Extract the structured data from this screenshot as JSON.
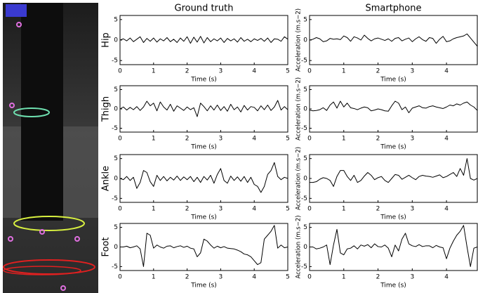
{
  "chart_data": [
    {
      "type": "line",
      "title": "Ground truth",
      "ylabel": "Hip",
      "xlabel": "Time (s)",
      "color": "#000000",
      "x": [
        0,
        0.1,
        0.2,
        0.3,
        0.4,
        0.5,
        0.6,
        0.7,
        0.8,
        0.9,
        1,
        1.1,
        1.2,
        1.3,
        1.4,
        1.5,
        1.6,
        1.7,
        1.8,
        1.9,
        2,
        2.1,
        2.2,
        2.3,
        2.4,
        2.5,
        2.6,
        2.7,
        2.8,
        2.9,
        3,
        3.1,
        3.2,
        3.3,
        3.4,
        3.5,
        3.6,
        3.7,
        3.8,
        3.9,
        4,
        4.1,
        4.2,
        4.3,
        4.4,
        4.5,
        4.6,
        4.7,
        4.8,
        4.9,
        5
      ],
      "values": [
        0,
        0.3,
        -0.2,
        0.5,
        -0.4,
        0.2,
        0.8,
        -0.6,
        0.4,
        -0.3,
        0.5,
        -0.5,
        0.3,
        -0.2,
        0.6,
        -0.4,
        0.2,
        -0.6,
        0.5,
        -0.3,
        0.8,
        -0.8,
        0.7,
        -0.5,
        0.9,
        -0.7,
        0.6,
        -0.4,
        0.3,
        -0.2,
        0.5,
        -0.6,
        0.4,
        -0.2,
        0.3,
        -0.5,
        0.6,
        -0.3,
        0.2,
        -0.4,
        0.3,
        -0.1,
        0.4,
        -0.3,
        0.5,
        -0.6,
        0.3,
        0.2,
        -0.3,
        0.8,
        0.2
      ],
      "xlim": [
        0,
        5
      ],
      "xticks": [
        0,
        1,
        2,
        3,
        4,
        5
      ],
      "ylim": [
        -6,
        6
      ],
      "yticks": [
        -5,
        0,
        5
      ]
    },
    {
      "type": "line",
      "title": "Smartphone",
      "ylabel": "Acceleration (m.s−2)",
      "xlabel": "Time (s)",
      "color": "#000000",
      "x": [
        0,
        0.1,
        0.2,
        0.3,
        0.4,
        0.5,
        0.6,
        0.7,
        0.8,
        0.9,
        1,
        1.1,
        1.2,
        1.3,
        1.4,
        1.5,
        1.6,
        1.7,
        1.8,
        1.9,
        2,
        2.1,
        2.2,
        2.3,
        2.4,
        2.5,
        2.6,
        2.7,
        2.8,
        2.9,
        3,
        3.1,
        3.2,
        3.3,
        3.4,
        3.5,
        3.6,
        3.7,
        3.8,
        3.9,
        4,
        4.1,
        4.2,
        4.3,
        4.4,
        4.5,
        4.6,
        4.7,
        4.8,
        4.9
      ],
      "values": [
        0,
        0.2,
        0.6,
        0.3,
        -0.4,
        -0.2,
        0.4,
        0.2,
        0.3,
        0.1,
        1.0,
        0.6,
        -0.3,
        0.8,
        0.5,
        0,
        1.2,
        0.4,
        -0.2,
        0.3,
        0.5,
        0.2,
        -0.1,
        0.3,
        -0.3,
        0.4,
        0.6,
        -0.2,
        0.2,
        0.5,
        -0.4,
        0.3,
        0.8,
        0.1,
        -0.3,
        0.6,
        0.4,
        -0.8,
        0.2,
        0.9,
        -0.4,
        -0.2,
        0.3,
        0.6,
        0.8,
        1.0,
        1.5,
        0.5,
        -0.5,
        -1.5
      ],
      "xlim": [
        0,
        4.9
      ],
      "xticks": [
        0,
        1,
        2,
        3,
        4
      ],
      "ylim": [
        -6,
        6
      ],
      "yticks": [
        -5,
        0,
        5
      ]
    },
    {
      "type": "line",
      "ylabel": "Thigh",
      "xlabel": "Time (s)",
      "color": "#000000",
      "x": [
        0,
        0.1,
        0.2,
        0.3,
        0.4,
        0.5,
        0.6,
        0.7,
        0.8,
        0.9,
        1,
        1.1,
        1.2,
        1.3,
        1.4,
        1.5,
        1.6,
        1.7,
        1.8,
        1.9,
        2,
        2.1,
        2.2,
        2.3,
        2.4,
        2.5,
        2.6,
        2.7,
        2.8,
        2.9,
        3,
        3.1,
        3.2,
        3.3,
        3.4,
        3.5,
        3.6,
        3.7,
        3.8,
        3.9,
        4,
        4.1,
        4.2,
        4.3,
        4.4,
        4.5,
        4.6,
        4.7,
        4.8,
        4.9,
        5
      ],
      "values": [
        0,
        0.5,
        -0.3,
        0.4,
        -0.2,
        0.6,
        -0.4,
        0.5,
        2.0,
        0.8,
        1.5,
        -0.5,
        1.8,
        0.5,
        -0.3,
        1.2,
        -0.6,
        0.8,
        0.2,
        -0.4,
        0.5,
        -0.2,
        0.3,
        -2.0,
        1.5,
        0.6,
        -0.5,
        0.8,
        -0.3,
        1.0,
        -0.4,
        0.6,
        -0.6,
        1.2,
        -0.2,
        0.5,
        -0.8,
        0.9,
        -0.3,
        0.6,
        0.4,
        -0.5,
        0.8,
        -0.2,
        1.0,
        -0.4,
        0.5,
        2.2,
        -0.3,
        0.6,
        -0.2
      ],
      "xlim": [
        0,
        5
      ],
      "xticks": [
        0,
        1,
        2,
        3,
        4,
        5
      ],
      "ylim": [
        -6,
        6
      ],
      "yticks": [
        -5,
        0,
        5
      ]
    },
    {
      "type": "line",
      "ylabel": "Acceleration (m.s−2)",
      "xlabel": "Time (s)",
      "color": "#000000",
      "x": [
        0,
        0.1,
        0.2,
        0.3,
        0.4,
        0.5,
        0.6,
        0.7,
        0.8,
        0.9,
        1,
        1.1,
        1.2,
        1.3,
        1.4,
        1.5,
        1.6,
        1.7,
        1.8,
        1.9,
        2,
        2.1,
        2.2,
        2.3,
        2.4,
        2.5,
        2.6,
        2.7,
        2.8,
        2.9,
        3,
        3.1,
        3.2,
        3.3,
        3.4,
        3.5,
        3.6,
        3.7,
        3.8,
        3.9,
        4,
        4.1,
        4.2,
        4.3,
        4.4,
        4.5,
        4.6,
        4.7,
        4.8,
        4.9
      ],
      "values": [
        -0.3,
        -0.5,
        -0.4,
        -0.2,
        0.3,
        -0.4,
        1.0,
        1.8,
        0.2,
        2.0,
        0.5,
        1.5,
        0.3,
        0.1,
        -0.2,
        0.2,
        0.5,
        0.3,
        -0.5,
        -0.3,
        0,
        -0.2,
        -0.5,
        -0.6,
        0.8,
        2.0,
        1.5,
        -0.2,
        0.5,
        -1.0,
        0.2,
        0.5,
        0.8,
        0.3,
        0.2,
        0.6,
        0.8,
        0.5,
        0.3,
        0.1,
        0.5,
        1.0,
        0.8,
        1.3,
        1.0,
        1.5,
        1.8,
        1.0,
        0.5,
        -0.4
      ],
      "xlim": [
        0,
        4.9
      ],
      "xticks": [
        0,
        1,
        2,
        3,
        4
      ],
      "ylim": [
        -6,
        6
      ],
      "yticks": [
        -5,
        0,
        5
      ]
    },
    {
      "type": "line",
      "ylabel": "Ankle",
      "xlabel": "Time (s)",
      "color": "#000000",
      "x": [
        0,
        0.1,
        0.2,
        0.3,
        0.4,
        0.5,
        0.6,
        0.7,
        0.8,
        0.9,
        1,
        1.1,
        1.2,
        1.3,
        1.4,
        1.5,
        1.6,
        1.7,
        1.8,
        1.9,
        2,
        2.1,
        2.2,
        2.3,
        2.4,
        2.5,
        2.6,
        2.7,
        2.8,
        2.9,
        3,
        3.1,
        3.2,
        3.3,
        3.4,
        3.5,
        3.6,
        3.7,
        3.8,
        3.9,
        4,
        4.1,
        4.2,
        4.3,
        4.4,
        4.5,
        4.6,
        4.7,
        4.8,
        4.9,
        5
      ],
      "values": [
        0,
        -0.3,
        0.5,
        -0.5,
        0.3,
        -2.5,
        -1.0,
        2.0,
        1.5,
        -0.8,
        -2.0,
        0.8,
        -0.5,
        0.5,
        -0.6,
        0.3,
        -0.4,
        0.6,
        -0.5,
        0.4,
        -0.3,
        0.5,
        -0.8,
        0.3,
        -1.0,
        0.5,
        -0.4,
        0.8,
        -1.2,
        1.0,
        2.5,
        -0.5,
        -1.2,
        0.6,
        -0.5,
        0.4,
        -0.7,
        0.5,
        -1.0,
        0.3,
        -1.5,
        -2.0,
        -3.5,
        -2.0,
        1.0,
        2.0,
        4.0,
        0.5,
        -0.3,
        0.3,
        0
      ],
      "xlim": [
        0,
        5
      ],
      "xticks": [
        0,
        1,
        2,
        3,
        4,
        5
      ],
      "ylim": [
        -6,
        6
      ],
      "yticks": [
        -5,
        0,
        5
      ]
    },
    {
      "type": "line",
      "ylabel": "Acceleration (m.s−2)",
      "xlabel": "Time (s)",
      "color": "#000000",
      "x": [
        0,
        0.1,
        0.2,
        0.3,
        0.4,
        0.5,
        0.6,
        0.7,
        0.8,
        0.9,
        1,
        1.1,
        1.2,
        1.3,
        1.4,
        1.5,
        1.6,
        1.7,
        1.8,
        1.9,
        2,
        2.1,
        2.2,
        2.3,
        2.4,
        2.5,
        2.6,
        2.7,
        2.8,
        2.9,
        3,
        3.1,
        3.2,
        3.3,
        3.4,
        3.5,
        3.6,
        3.7,
        3.8,
        3.9,
        4,
        4.1,
        4.2,
        4.3,
        4.4,
        4.5,
        4.6,
        4.7,
        4.8,
        4.9
      ],
      "values": [
        -1.0,
        -1.0,
        -0.8,
        -0.2,
        0.2,
        0,
        -0.5,
        -2.0,
        0.5,
        2.0,
        2.0,
        0.5,
        -0.5,
        0.8,
        -1.0,
        -0.5,
        0.6,
        1.5,
        0.8,
        -0.3,
        0.2,
        0.5,
        -0.5,
        -1.0,
        0,
        1.0,
        0.8,
        -0.2,
        0.3,
        0.8,
        0.2,
        -0.3,
        0.5,
        0.8,
        0.6,
        0.5,
        0.3,
        0.6,
        0.9,
        0.2,
        0.5,
        1.0,
        1.5,
        0.5,
        2.5,
        0.8,
        5.0,
        0,
        -0.4,
        0
      ],
      "xlim": [
        0,
        4.9
      ],
      "xticks": [
        0,
        1,
        2,
        3,
        4
      ],
      "ylim": [
        -6,
        6
      ],
      "yticks": [
        -5,
        0,
        5
      ]
    },
    {
      "type": "line",
      "ylabel": "Foot",
      "xlabel": "Time (s)",
      "color": "#000000",
      "x": [
        0,
        0.1,
        0.2,
        0.3,
        0.4,
        0.5,
        0.6,
        0.7,
        0.8,
        0.9,
        1,
        1.1,
        1.2,
        1.3,
        1.4,
        1.5,
        1.6,
        1.7,
        1.8,
        1.9,
        2,
        2.1,
        2.2,
        2.3,
        2.4,
        2.5,
        2.6,
        2.7,
        2.8,
        2.9,
        3,
        3.1,
        3.2,
        3.3,
        3.4,
        3.5,
        3.6,
        3.7,
        3.8,
        3.9,
        4,
        4.1,
        4.2,
        4.3,
        4.4,
        4.5,
        4.6,
        4.7,
        4.8,
        4.9,
        5
      ],
      "values": [
        0,
        0,
        0.2,
        -0.2,
        0,
        0.3,
        -0.5,
        -5.0,
        3.5,
        3.0,
        -0.3,
        0.5,
        0,
        -0.3,
        0.2,
        0.3,
        -0.2,
        0.1,
        0.3,
        -0.1,
        0.2,
        -0.3,
        -0.5,
        -2.5,
        -1.5,
        2.0,
        1.5,
        0.5,
        -0.3,
        0.2,
        -0.2,
        0.1,
        -0.3,
        -0.4,
        -0.5,
        -0.8,
        -1.2,
        -1.8,
        -2.0,
        -2.5,
        -3.5,
        -4.5,
        -4.0,
        2.0,
        3.0,
        4.0,
        5.5,
        -0.3,
        0.5,
        -0.2,
        0
      ],
      "xlim": [
        0,
        5
      ],
      "xticks": [
        0,
        1,
        2,
        3,
        4,
        5
      ],
      "ylim": [
        -6,
        6
      ],
      "yticks": [
        -5,
        0,
        5
      ]
    },
    {
      "type": "line",
      "ylabel": "Acceleration (m.s−2)",
      "xlabel": "Time (s)",
      "color": "#000000",
      "x": [
        0,
        0.1,
        0.2,
        0.3,
        0.4,
        0.5,
        0.6,
        0.7,
        0.8,
        0.9,
        1,
        1.1,
        1.2,
        1.3,
        1.4,
        1.5,
        1.6,
        1.7,
        1.8,
        1.9,
        2,
        2.1,
        2.2,
        2.3,
        2.4,
        2.5,
        2.6,
        2.7,
        2.8,
        2.9,
        3,
        3.1,
        3.2,
        3.3,
        3.4,
        3.5,
        3.6,
        3.7,
        3.8,
        3.9,
        4,
        4.1,
        4.2,
        4.3,
        4.4,
        4.5,
        4.6,
        4.7,
        4.8,
        4.9
      ],
      "values": [
        0,
        0,
        -0.5,
        -0.3,
        0,
        0.5,
        -4.5,
        0.5,
        4.5,
        -1.5,
        -2.0,
        -0.5,
        -0.3,
        0.3,
        -0.5,
        0.5,
        0.2,
        0.6,
        -0.2,
        0.8,
        0.1,
        0,
        0.5,
        -0.3,
        -2.5,
        0.5,
        -1.0,
        2.0,
        3.5,
        0.8,
        0.3,
        0.1,
        0.6,
        0.1,
        0.3,
        0.3,
        -0.2,
        0.4,
        0,
        -0.2,
        -3.0,
        -0.3,
        1.5,
        3.0,
        4.0,
        5.5,
        0,
        -5.0,
        -0.3,
        0
      ],
      "xlim": [
        0,
        4.9
      ],
      "xticks": [
        0,
        1,
        2,
        3,
        4
      ],
      "ylim": [
        -6,
        6
      ],
      "yticks": [
        -5,
        0,
        5
      ]
    }
  ]
}
